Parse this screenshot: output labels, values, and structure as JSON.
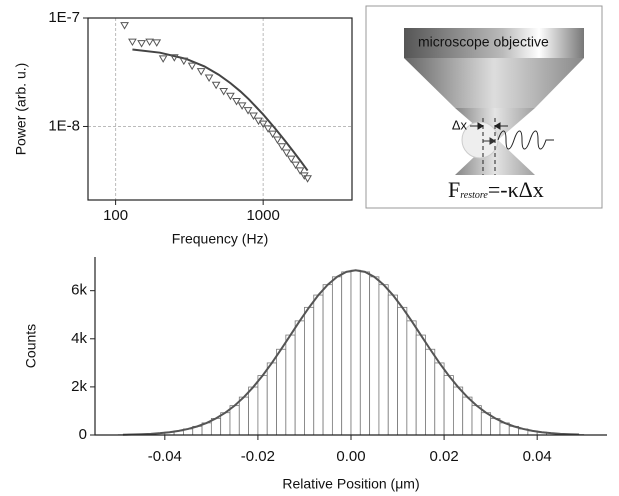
{
  "chart_data": [
    {
      "type": "scatter",
      "xlabel": "Frequency (Hz)",
      "ylabel": "Power (arb. u.)",
      "xscale": "log",
      "yscale": "log",
      "xlim": [
        65,
        4000
      ],
      "ylim": [
        2.1e-09,
        1e-07
      ],
      "xticks": [
        100,
        1000
      ],
      "yticks": [
        {
          "value": 1e-07,
          "label": "1E-7"
        },
        {
          "value": 1e-08,
          "label": "1E-8"
        }
      ],
      "grid": true,
      "points": {
        "color": "#555555",
        "x": [
          115,
          130,
          150,
          170,
          190,
          210,
          250,
          290,
          330,
          380,
          430,
          480,
          540,
          600,
          660,
          720,
          790,
          860,
          930,
          1000,
          1080,
          1160,
          1250,
          1340,
          1440,
          1550,
          1660,
          1780,
          1900,
          2000
        ],
        "values": [
          8.5e-08,
          6e-08,
          5.8e-08,
          6e-08,
          5.9e-08,
          4.2e-08,
          4.3e-08,
          4e-08,
          3.6e-08,
          3.2e-08,
          2.8e-08,
          2.4e-08,
          2.1e-08,
          1.9e-08,
          1.7e-08,
          1.55e-08,
          1.4e-08,
          1.25e-08,
          1.12e-08,
          1.05e-08,
          9.5e-09,
          8.5e-09,
          7.5e-09,
          6.5e-09,
          5.7e-09,
          5e-09,
          4.4e-09,
          3.9e-09,
          3.5e-09,
          3.3e-09
        ]
      },
      "fit": {
        "color": "#444444",
        "x": [
          130,
          200,
          300,
          400,
          500,
          600,
          700,
          800,
          1000,
          1200,
          1400,
          1600,
          1800,
          2000
        ],
        "values": [
          5.12e-08,
          4.79e-08,
          4.2e-08,
          3.58e-08,
          3e-08,
          2.51e-08,
          2.11e-08,
          1.78e-08,
          1.29e-08,
          9.66e-09,
          7.45e-09,
          5.9e-09,
          4.77e-09,
          3.92e-09
        ]
      }
    },
    {
      "type": "histogram",
      "xlabel": "Relative Position (μm)",
      "ylabel": "Counts",
      "xlim": [
        -0.055,
        0.055
      ],
      "ylim": [
        0,
        7400
      ],
      "xticks": [
        -0.04,
        -0.02,
        {
          "value": 0,
          "label": "0.00"
        },
        0.02,
        0.04
      ],
      "yticks": [
        0,
        {
          "value": 2000,
          "label": "2k"
        },
        {
          "value": 4000,
          "label": "4k"
        },
        {
          "value": 6000,
          "label": "6k"
        }
      ],
      "color": "#ffffff",
      "edgecolor": "#777777",
      "fit_color": "#555555",
      "bins": [
        -0.05,
        -0.048,
        -0.046,
        -0.044,
        -0.042,
        -0.04,
        -0.038,
        -0.036,
        -0.034,
        -0.032,
        -0.03,
        -0.028,
        -0.026,
        -0.024,
        -0.022,
        -0.02,
        -0.018,
        -0.016,
        -0.014,
        -0.012,
        -0.01,
        -0.008,
        -0.006,
        -0.004,
        -0.002,
        0,
        0.002,
        0.004,
        0.006,
        0.008,
        0.01,
        0.012,
        0.014,
        0.016,
        0.018,
        0.02,
        0.022,
        0.024,
        0.026,
        0.028,
        0.03,
        0.032,
        0.034,
        0.036,
        0.038,
        0.04,
        0.042,
        0.044,
        0.046,
        0.048,
        0.05
      ],
      "values": [
        12,
        19,
        31,
        49,
        76,
        116,
        172,
        251,
        359,
        503,
        690,
        927,
        1221,
        1576,
        1994,
        2470,
        2996,
        3565,
        4155,
        4745,
        5307,
        5818,
        6249,
        6576,
        6781,
        6850,
        6781,
        6576,
        6249,
        5818,
        5307,
        4745,
        4155,
        3565,
        2996,
        2470,
        1994,
        1576,
        1221,
        927,
        690,
        503,
        359,
        251,
        172,
        116,
        76,
        49,
        31,
        19
      ]
    }
  ],
  "diagram": {
    "objective_label": "microscope objective",
    "delta_label": "Δx",
    "force": {
      "symbol": "F",
      "subscript": "restore",
      "rest": "=-κΔx"
    }
  }
}
